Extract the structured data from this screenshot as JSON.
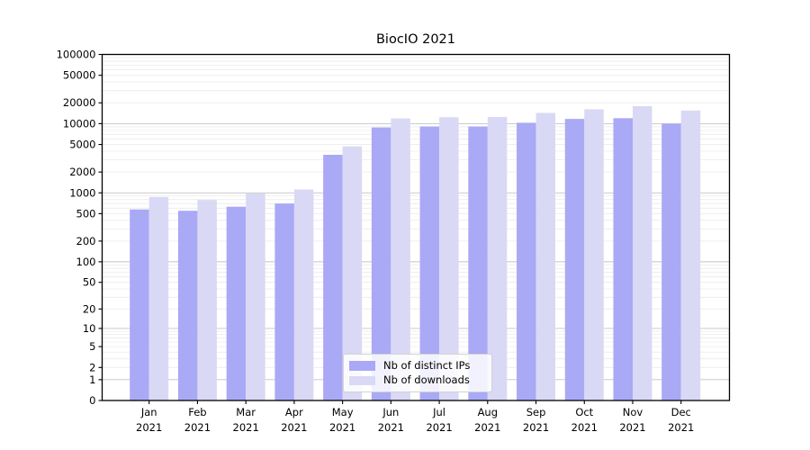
{
  "chart_data": {
    "type": "bar",
    "title": "BiocIO 2021",
    "yscale": "log1p",
    "ylim": [
      0,
      100000
    ],
    "grid": true,
    "legend_position": "inside lower center",
    "ytick_values": [
      0,
      1,
      2,
      5,
      10,
      20,
      50,
      100,
      200,
      500,
      1000,
      2000,
      5000,
      10000,
      20000,
      50000,
      100000
    ],
    "ytick_labels": [
      "0",
      "1",
      "2",
      "5",
      "10",
      "20",
      "50",
      "100",
      "200",
      "500",
      "1000",
      "2000",
      "5000",
      "10000",
      "20000",
      "50000",
      "100000"
    ],
    "categories": [
      "Jan",
      "Feb",
      "Mar",
      "Apr",
      "May",
      "Jun",
      "Jul",
      "Aug",
      "Sep",
      "Oct",
      "Nov",
      "Dec"
    ],
    "year_label": "2021",
    "series": [
      {
        "name": "Nb of distinct IPs",
        "color": "#a9a9f6",
        "values": [
          575,
          550,
          630,
          700,
          3550,
          8800,
          9100,
          9100,
          10300,
          11700,
          12000,
          10000
        ]
      },
      {
        "name": "Nb of downloads",
        "color": "#d9d9f6",
        "values": [
          870,
          790,
          980,
          1120,
          4700,
          11900,
          12400,
          12500,
          14300,
          16100,
          17900,
          15500
        ]
      }
    ],
    "colors": {
      "spine": "#000000",
      "major_grid": "#c4c4c4",
      "minor_grid": "#ebebeb",
      "text": "#000000"
    }
  }
}
